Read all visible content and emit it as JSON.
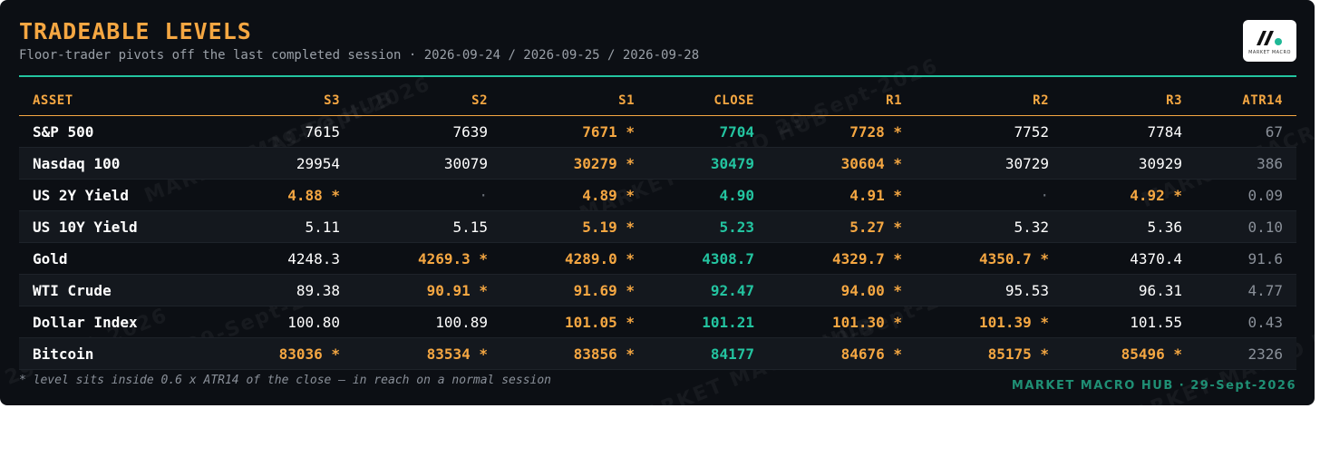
{
  "header": {
    "title": "TRADEABLE LEVELS",
    "subtitle": "Floor-trader pivots off the last completed session · 2026-09-24 / 2026-09-25 / 2026-09-28"
  },
  "logo": {
    "text": "MARKET MACRO",
    "icon": "mm-logo-icon"
  },
  "watermark": [
    "MARKET MACRO HUB",
    "29-Sept-2026"
  ],
  "table": {
    "columns": [
      "ASSET",
      "S3",
      "S2",
      "S1",
      "CLOSE",
      "R1",
      "R2",
      "R3",
      "ATR14"
    ],
    "rows": [
      {
        "asset": "S&P 500",
        "cells": [
          {
            "text": "7615",
            "style": "plain"
          },
          {
            "text": "7639",
            "style": "plain"
          },
          {
            "text": "7671 *",
            "style": "hl"
          },
          {
            "text": "7704",
            "style": "close"
          },
          {
            "text": "7728 *",
            "style": "hl"
          },
          {
            "text": "7752",
            "style": "plain"
          },
          {
            "text": "7784",
            "style": "plain"
          },
          {
            "text": "67",
            "style": "atr"
          }
        ]
      },
      {
        "asset": "Nasdaq 100",
        "cells": [
          {
            "text": "29954",
            "style": "plain"
          },
          {
            "text": "30079",
            "style": "plain"
          },
          {
            "text": "30279 *",
            "style": "hl"
          },
          {
            "text": "30479",
            "style": "close"
          },
          {
            "text": "30604 *",
            "style": "hl"
          },
          {
            "text": "30729",
            "style": "plain"
          },
          {
            "text": "30929",
            "style": "plain"
          },
          {
            "text": "386",
            "style": "atr"
          }
        ]
      },
      {
        "asset": "US 2Y Yield",
        "cells": [
          {
            "text": "4.88 *",
            "style": "hl"
          },
          {
            "text": "·",
            "style": "dot"
          },
          {
            "text": "4.89 *",
            "style": "hl"
          },
          {
            "text": "4.90",
            "style": "close"
          },
          {
            "text": "4.91 *",
            "style": "hl"
          },
          {
            "text": "·",
            "style": "dot"
          },
          {
            "text": "4.92 *",
            "style": "hl"
          },
          {
            "text": "0.09",
            "style": "atr"
          }
        ]
      },
      {
        "asset": "US 10Y Yield",
        "cells": [
          {
            "text": "5.11",
            "style": "plain"
          },
          {
            "text": "5.15",
            "style": "plain"
          },
          {
            "text": "5.19 *",
            "style": "hl"
          },
          {
            "text": "5.23",
            "style": "close"
          },
          {
            "text": "5.27 *",
            "style": "hl"
          },
          {
            "text": "5.32",
            "style": "plain"
          },
          {
            "text": "5.36",
            "style": "plain"
          },
          {
            "text": "0.10",
            "style": "atr"
          }
        ]
      },
      {
        "asset": "Gold",
        "cells": [
          {
            "text": "4248.3",
            "style": "plain"
          },
          {
            "text": "4269.3 *",
            "style": "hl"
          },
          {
            "text": "4289.0 *",
            "style": "hl"
          },
          {
            "text": "4308.7",
            "style": "close"
          },
          {
            "text": "4329.7 *",
            "style": "hl"
          },
          {
            "text": "4350.7 *",
            "style": "hl"
          },
          {
            "text": "4370.4",
            "style": "plain"
          },
          {
            "text": "91.6",
            "style": "atr"
          }
        ]
      },
      {
        "asset": "WTI Crude",
        "cells": [
          {
            "text": "89.38",
            "style": "plain"
          },
          {
            "text": "90.91 *",
            "style": "hl"
          },
          {
            "text": "91.69 *",
            "style": "hl"
          },
          {
            "text": "92.47",
            "style": "close"
          },
          {
            "text": "94.00 *",
            "style": "hl"
          },
          {
            "text": "95.53",
            "style": "plain"
          },
          {
            "text": "96.31",
            "style": "plain"
          },
          {
            "text": "4.77",
            "style": "atr"
          }
        ]
      },
      {
        "asset": "Dollar Index",
        "cells": [
          {
            "text": "100.80",
            "style": "plain"
          },
          {
            "text": "100.89",
            "style": "plain"
          },
          {
            "text": "101.05 *",
            "style": "hl"
          },
          {
            "text": "101.21",
            "style": "close"
          },
          {
            "text": "101.30 *",
            "style": "hl"
          },
          {
            "text": "101.39 *",
            "style": "hl"
          },
          {
            "text": "101.55",
            "style": "plain"
          },
          {
            "text": "0.43",
            "style": "atr"
          }
        ]
      },
      {
        "asset": "Bitcoin",
        "cells": [
          {
            "text": "83036 *",
            "style": "hl"
          },
          {
            "text": "83534 *",
            "style": "hl"
          },
          {
            "text": "83856 *",
            "style": "hl"
          },
          {
            "text": "84177",
            "style": "close"
          },
          {
            "text": "84676 *",
            "style": "hl"
          },
          {
            "text": "85175 *",
            "style": "hl"
          },
          {
            "text": "85496 *",
            "style": "hl"
          },
          {
            "text": "2326",
            "style": "atr"
          }
        ]
      }
    ]
  },
  "footnote": "* level sits inside 0.6 x ATR14 of the close — in reach on a normal session",
  "brand": "MARKET MACRO HUB · 29-Sept-2026",
  "colors": {
    "accent": "#f5a742",
    "close": "#23c4a0",
    "background": "#0c0f14",
    "brand": "#1f8f74"
  }
}
